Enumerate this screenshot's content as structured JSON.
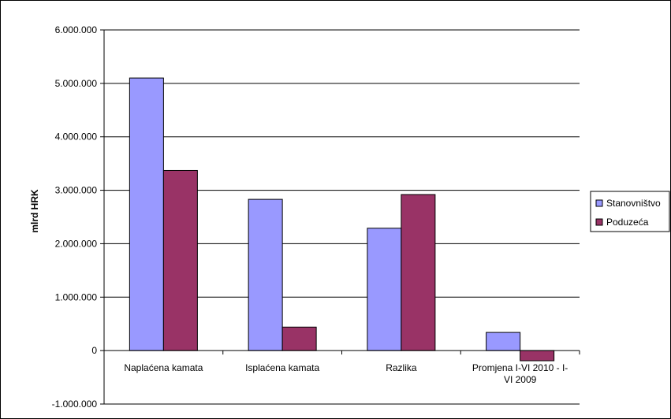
{
  "chart_data": {
    "type": "bar",
    "title": "",
    "xlabel": "",
    "ylabel": "mlrd HRK",
    "categories": [
      [
        "Naplaćena kamata"
      ],
      [
        "Isplaćena kamata"
      ],
      [
        "Razlika"
      ],
      [
        "Promjena I-VI 2010 - I-",
        "VI 2009"
      ]
    ],
    "series": [
      {
        "name": "Stanovništvo",
        "color": "#9999ff",
        "values": [
          5100000,
          2830000,
          2290000,
          340000
        ]
      },
      {
        "name": "Poduzeća",
        "color": "#993366",
        "values": [
          3370000,
          440000,
          2920000,
          -190000
        ]
      }
    ],
    "ylim": [
      -1000000,
      6000000
    ],
    "yticks": [
      {
        "value": 6000000,
        "label": "6.000.000"
      },
      {
        "value": 5000000,
        "label": "5.000.000"
      },
      {
        "value": 4000000,
        "label": "4.000.000"
      },
      {
        "value": 3000000,
        "label": "3.000.000"
      },
      {
        "value": 2000000,
        "label": "2.000.000"
      },
      {
        "value": 1000000,
        "label": "1.000.000"
      },
      {
        "value": 0,
        "label": "0"
      },
      {
        "value": -1000000,
        "label": "-1.000.000"
      }
    ],
    "grid": true,
    "legend_position": "right"
  }
}
